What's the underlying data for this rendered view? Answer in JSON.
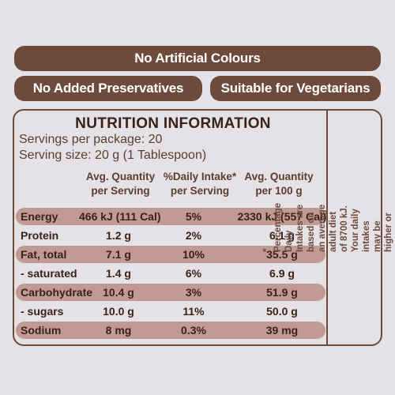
{
  "badges": {
    "no_colours": "No Artificial Colours",
    "no_preservatives": "No Added Preservatives",
    "vegetarians": "Suitable for Vegetarians"
  },
  "panel": {
    "title": "NUTRITION INFORMATION",
    "servings_per_package": "Servings per package: 20",
    "serving_size": "Serving size: 20 g (1 Tablespoon)",
    "headers": {
      "per_serving": "Avg. Quantity per Serving",
      "daily_intake": "%Daily Intake* per Serving",
      "per_100g": "Avg. Quantity per 100 g"
    },
    "rows": [
      {
        "name": "Energy",
        "per_serving": "466 kJ (111 Cal)",
        "daily": "5%",
        "per_100g": "2330 kJ (557 Cal)"
      },
      {
        "name": "Protein",
        "per_serving": "1.2 g",
        "daily": "2%",
        "per_100g": "6.1 g"
      },
      {
        "name": "Fat, total",
        "per_serving": "7.1 g",
        "daily": "10%",
        "per_100g": "35.5 g"
      },
      {
        "name": "- saturated",
        "per_serving": "1.4 g",
        "daily": "6%",
        "per_100g": "6.9 g"
      },
      {
        "name": "Carbohydrate",
        "per_serving": "10.4 g",
        "daily": "3%",
        "per_100g": "51.9 g"
      },
      {
        "name": "- sugars",
        "per_serving": "10.0 g",
        "daily": "11%",
        "per_100g": "50.0 g"
      },
      {
        "name": "Sodium",
        "per_serving": "8 mg",
        "daily": "0.3%",
        "per_100g": "39 mg"
      }
    ],
    "footnote": "* Percentage Daily Intakes are based on an average adult diet of 8700 kJ. Your daily intakes may be higher or lower depending on your energy needs."
  },
  "colors": {
    "brown": "#6e4a3c",
    "row_shade": "#c19a93",
    "background": "#e4e2e6"
  }
}
